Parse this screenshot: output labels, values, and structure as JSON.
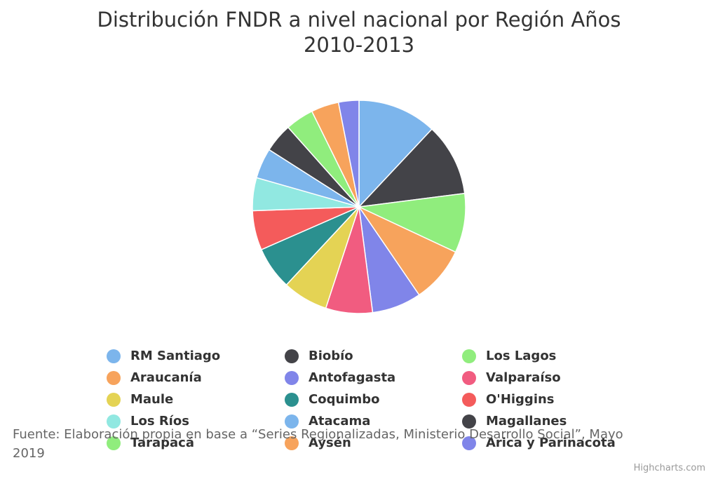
{
  "chart_data": {
    "type": "pie",
    "title": "Distribución FNDR a nivel nacional por Región Años 2010-2013",
    "series": [
      {
        "name": "RM Santiago",
        "value": 12.0,
        "color": "#7cb5ec"
      },
      {
        "name": "Biobío",
        "value": 11.0,
        "color": "#434348"
      },
      {
        "name": "Los Lagos",
        "value": 9.0,
        "color": "#90ed7d"
      },
      {
        "name": "Araucanía",
        "value": 8.5,
        "color": "#f7a35c"
      },
      {
        "name": "Antofagasta",
        "value": 7.5,
        "color": "#8085e9"
      },
      {
        "name": "Valparaíso",
        "value": 7.1,
        "color": "#f15c80"
      },
      {
        "name": "Maule",
        "value": 6.9,
        "color": "#e4d354"
      },
      {
        "name": "Coquimbo",
        "value": 6.5,
        "color": "#2b908f"
      },
      {
        "name": "O'Higgins",
        "value": 6.0,
        "color": "#f45b5b"
      },
      {
        "name": "Los Ríos",
        "value": 5.0,
        "color": "#91e8e1"
      },
      {
        "name": "Atacama",
        "value": 4.6,
        "color": "#7cb5ec"
      },
      {
        "name": "Magallanes",
        "value": 4.4,
        "color": "#434348"
      },
      {
        "name": "Tarapacá",
        "value": 4.3,
        "color": "#90ed7d"
      },
      {
        "name": "Aysén",
        "value": 4.2,
        "color": "#f7a35c"
      },
      {
        "name": "Arica y Parinacota",
        "value": 3.1,
        "color": "#8085e9"
      }
    ],
    "legend_placement": "bottom"
  },
  "caption": "Fuente: Elaboración propia en base a “Series Regionalizadas, Ministerio Desarrollo Social”, Mayo 2019",
  "credits": "Highcharts.com"
}
